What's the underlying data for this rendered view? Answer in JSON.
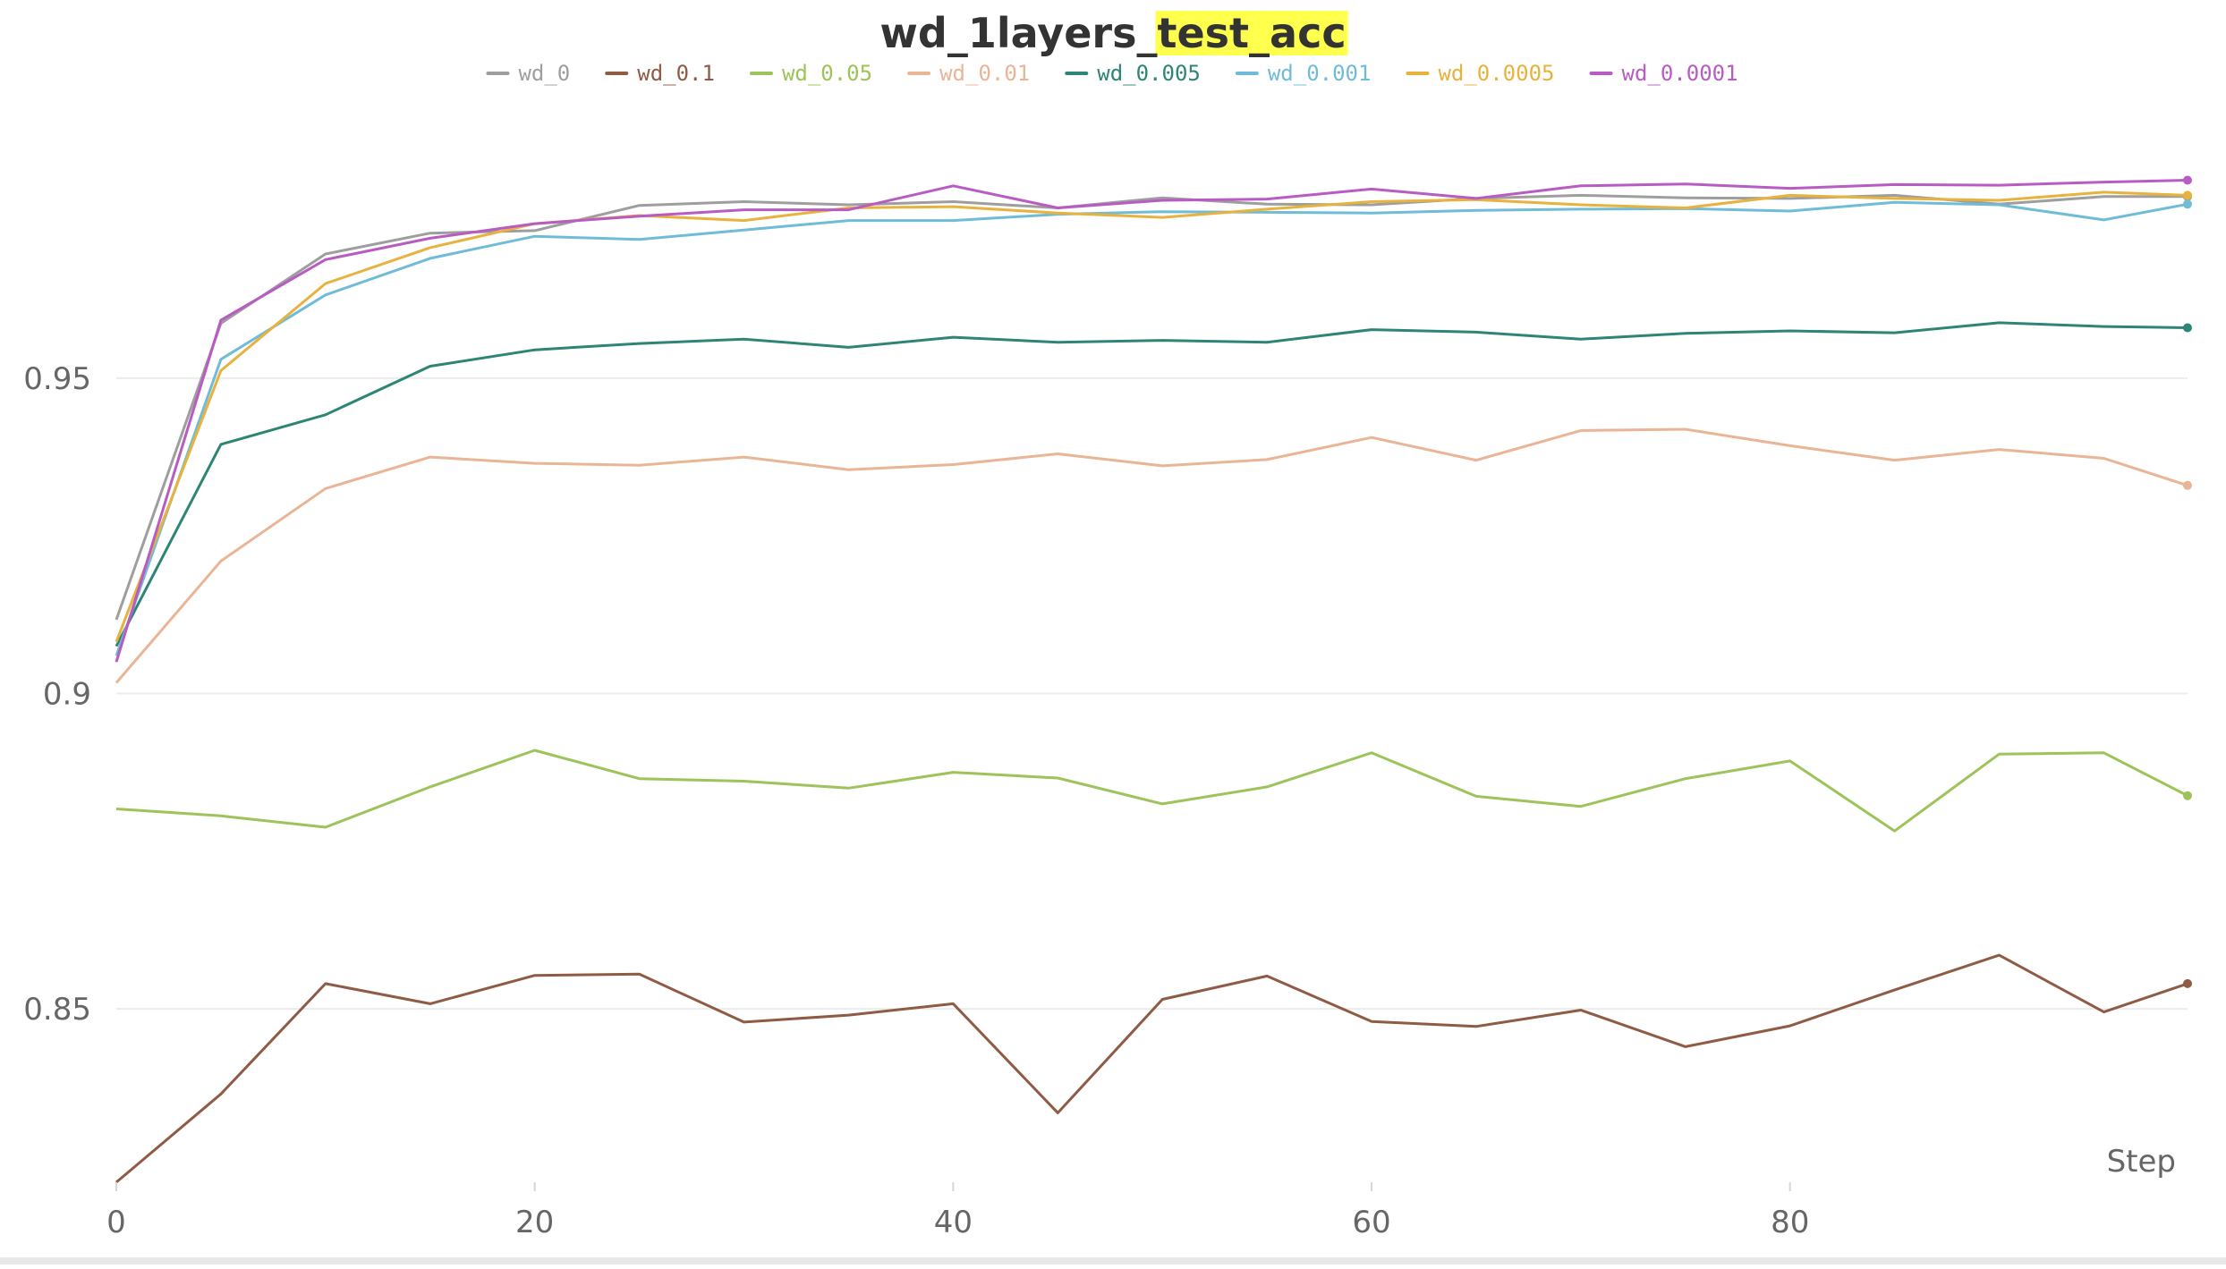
{
  "chart_data": {
    "type": "line",
    "title_parts": [
      {
        "text": "wd_1layers_",
        "highlight": false
      },
      {
        "text": "test_acc",
        "highlight": true
      }
    ],
    "highlight_color": "#ffff4d",
    "xlabel": "Step",
    "ylabel": "",
    "xlim": [
      0,
      99
    ],
    "ylim": [
      0.8225,
      0.9965
    ],
    "x_ticks": [
      0,
      20,
      40,
      60,
      80
    ],
    "y_ticks": [
      0.85,
      0.9,
      0.95
    ],
    "y_tick_labels": [
      "0.85",
      "0.9",
      "0.95"
    ],
    "grid": true,
    "legend_position": "top-center",
    "x": [
      0,
      5,
      10,
      15,
      20,
      25,
      30,
      35,
      40,
      45,
      50,
      55,
      60,
      65,
      70,
      75,
      80,
      85,
      90,
      95,
      99
    ],
    "series": [
      {
        "name": "wd_0",
        "color": "#9e9e9e",
        "values": [
          0.9117,
          0.9587,
          0.9697,
          0.973,
          0.9734,
          0.9774,
          0.978,
          0.9775,
          0.978,
          0.977,
          0.9786,
          0.9776,
          0.9775,
          0.9785,
          0.979,
          0.9786,
          0.9785,
          0.979,
          0.9776,
          0.9788,
          0.9788
        ]
      },
      {
        "name": "wd_0.1",
        "color": "#8f5b45",
        "values": [
          0.8225,
          0.8365,
          0.854,
          0.8508,
          0.8553,
          0.8555,
          0.8479,
          0.849,
          0.8508,
          0.8335,
          0.8515,
          0.8552,
          0.848,
          0.8472,
          0.8498,
          0.844,
          0.8473,
          0.853,
          0.8585,
          0.8495,
          0.854
        ]
      },
      {
        "name": "wd_0.05",
        "color": "#9dc35a",
        "values": [
          0.8817,
          0.8806,
          0.8788,
          0.8852,
          0.891,
          0.8865,
          0.8861,
          0.885,
          0.8875,
          0.8866,
          0.8825,
          0.8852,
          0.8906,
          0.8837,
          0.8821,
          0.8865,
          0.8893,
          0.8782,
          0.8904,
          0.8906,
          0.8838
        ]
      },
      {
        "name": "wd_0.01",
        "color": "#e9b596",
        "values": [
          0.9017,
          0.921,
          0.9325,
          0.9375,
          0.9365,
          0.9362,
          0.9375,
          0.9355,
          0.9363,
          0.938,
          0.9361,
          0.9371,
          0.9406,
          0.937,
          0.9417,
          0.9419,
          0.9393,
          0.937,
          0.9387,
          0.9373,
          0.933
        ]
      },
      {
        "name": "wd_0.005",
        "color": "#2e8575",
        "values": [
          0.9075,
          0.9395,
          0.9442,
          0.9519,
          0.9545,
          0.9555,
          0.9562,
          0.9549,
          0.9565,
          0.9557,
          0.956,
          0.9557,
          0.9577,
          0.9573,
          0.9562,
          0.9571,
          0.9575,
          0.9572,
          0.9588,
          0.9582,
          0.958
        ]
      },
      {
        "name": "wd_0.001",
        "color": "#70bcd8",
        "values": [
          0.906,
          0.953,
          0.9632,
          0.969,
          0.9725,
          0.972,
          0.9735,
          0.975,
          0.975,
          0.976,
          0.9764,
          0.9763,
          0.9762,
          0.9766,
          0.9768,
          0.9769,
          0.9765,
          0.9779,
          0.9775,
          0.9751,
          0.9776
        ]
      },
      {
        "name": "wd_0.0005",
        "color": "#e8b23e",
        "values": [
          0.9082,
          0.9512,
          0.965,
          0.9707,
          0.9745,
          0.9758,
          0.975,
          0.977,
          0.9772,
          0.9762,
          0.9755,
          0.9768,
          0.978,
          0.9783,
          0.9775,
          0.977,
          0.979,
          0.9785,
          0.9782,
          0.9795,
          0.979
        ]
      },
      {
        "name": "wd_0.0001",
        "color": "#b85cc4",
        "values": [
          0.905,
          0.9592,
          0.9688,
          0.9722,
          0.9745,
          0.9757,
          0.9767,
          0.9767,
          0.9805,
          0.977,
          0.9782,
          0.9784,
          0.98,
          0.9785,
          0.9805,
          0.9808,
          0.9801,
          0.9807,
          0.9806,
          0.9811,
          0.9814
        ]
      }
    ]
  }
}
